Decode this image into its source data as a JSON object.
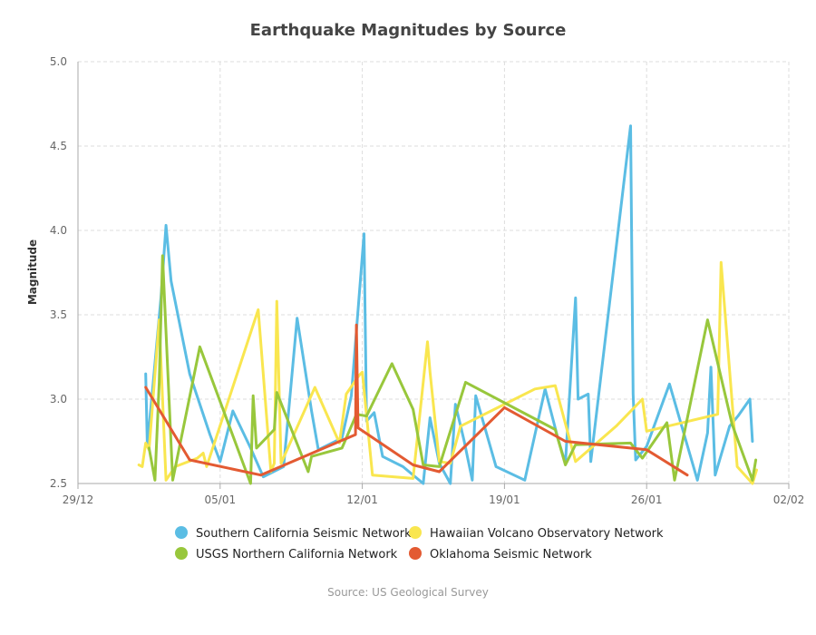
{
  "chart_data": {
    "type": "line",
    "title": "Earthquake Magnitudes by Source",
    "xlabel": "",
    "ylabel": "Magnitude",
    "source": "Source: US Geological Survey",
    "x_is_date": true,
    "xlim": [
      "2015-12-29",
      "2016-02-02"
    ],
    "x_ticks": [
      "2015-12-29",
      "2016-01-05",
      "2016-01-12",
      "2016-01-19",
      "2016-01-26",
      "2016-02-02"
    ],
    "x_tick_labels": [
      "29/12",
      "05/01",
      "12/01",
      "19/01",
      "26/01",
      "02/02"
    ],
    "ylim": [
      2.5,
      5.0
    ],
    "y_ticks": [
      2.5,
      3.0,
      3.5,
      4.0,
      4.5,
      5.0
    ],
    "y_tick_labels": [
      "2.5",
      "3.0",
      "3.5",
      "4.0",
      "4.5",
      "5.0"
    ],
    "grid": true,
    "legend_position": "bottom",
    "series": [
      {
        "name": "Southern California Seismic Network",
        "color": "#5bbde4",
        "points": [
          [
            "2016-01-01T08:00",
            3.15
          ],
          [
            "2016-01-01T10:00",
            2.72
          ],
          [
            "2016-01-02T02:00",
            3.6
          ],
          [
            "2016-01-02T08:00",
            4.03
          ],
          [
            "2016-01-02T14:00",
            3.7
          ],
          [
            "2016-01-03T12:00",
            3.15
          ],
          [
            "2016-01-04T12:00",
            2.79
          ],
          [
            "2016-01-05T00:00",
            2.63
          ],
          [
            "2016-01-05T15:00",
            2.93
          ],
          [
            "2016-01-06T12:00",
            2.71
          ],
          [
            "2016-01-07T03:00",
            2.54
          ],
          [
            "2016-01-08T03:00",
            2.6
          ],
          [
            "2016-01-08T19:00",
            3.48
          ],
          [
            "2016-01-09T12:00",
            2.93
          ],
          [
            "2016-01-09T20:00",
            2.7
          ],
          [
            "2016-01-11T00:00",
            2.77
          ],
          [
            "2016-01-11T11:00",
            3.02
          ],
          [
            "2016-01-12T02:00",
            3.98
          ],
          [
            "2016-01-12T05:00",
            2.87
          ],
          [
            "2016-01-12T14:00",
            2.92
          ],
          [
            "2016-01-13T00:00",
            2.66
          ],
          [
            "2016-01-14T00:00",
            2.6
          ],
          [
            "2016-01-15T00:00",
            2.5
          ],
          [
            "2016-01-15T08:00",
            2.89
          ],
          [
            "2016-01-15T19:00",
            2.62
          ],
          [
            "2016-01-16T08:00",
            2.5
          ],
          [
            "2016-01-16T14:00",
            2.97
          ],
          [
            "2016-01-17T00:00",
            2.76
          ],
          [
            "2016-01-17T10:00",
            2.52
          ],
          [
            "2016-01-17T14:00",
            3.02
          ],
          [
            "2016-01-18T14:00",
            2.6
          ],
          [
            "2016-01-20T00:00",
            2.52
          ],
          [
            "2016-01-21T00:00",
            3.06
          ],
          [
            "2016-01-21T15:00",
            2.77
          ],
          [
            "2016-01-22T00:00",
            2.62
          ],
          [
            "2016-01-22T12:00",
            3.6
          ],
          [
            "2016-01-22T15:00",
            3.0
          ],
          [
            "2016-01-23T03:00",
            3.03
          ],
          [
            "2016-01-23T06:00",
            2.63
          ],
          [
            "2016-01-25T05:00",
            4.62
          ],
          [
            "2016-01-25T08:00",
            3.03
          ],
          [
            "2016-01-25T11:00",
            2.64
          ],
          [
            "2016-01-26T00:00",
            2.72
          ],
          [
            "2016-01-27T03:00",
            3.09
          ],
          [
            "2016-01-28T12:00",
            2.52
          ],
          [
            "2016-01-29T00:00",
            2.8
          ],
          [
            "2016-01-29T04:00",
            3.19
          ],
          [
            "2016-01-29T09:00",
            2.55
          ],
          [
            "2016-01-30T02:00",
            2.84
          ],
          [
            "2016-01-30T12:00",
            2.9
          ],
          [
            "2016-01-31T02:00",
            3.0
          ],
          [
            "2016-01-31T05:00",
            2.75
          ]
        ]
      },
      {
        "name": "Hawaiian Volcano Observatory Network",
        "color": "#f9e64f",
        "points": [
          [
            "2016-01-01T00:00",
            2.61
          ],
          [
            "2016-01-01T04:00",
            2.6
          ],
          [
            "2016-01-01T08:00",
            2.74
          ],
          [
            "2016-01-01T12:00",
            2.7
          ],
          [
            "2016-01-02T00:00",
            3.47
          ],
          [
            "2016-01-02T08:00",
            2.52
          ],
          [
            "2016-01-02T19:00",
            2.6
          ],
          [
            "2016-01-03T21:00",
            2.65
          ],
          [
            "2016-01-04T04:00",
            2.68
          ],
          [
            "2016-01-04T08:00",
            2.6
          ],
          [
            "2016-01-06T21:00",
            3.53
          ],
          [
            "2016-01-07T12:00",
            2.57
          ],
          [
            "2016-01-07T16:00",
            2.62
          ],
          [
            "2016-01-07T19:00",
            3.58
          ],
          [
            "2016-01-08T00:00",
            2.62
          ],
          [
            "2016-01-09T16:00",
            3.07
          ],
          [
            "2016-01-10T21:00",
            2.74
          ],
          [
            "2016-01-11T05:00",
            3.03
          ],
          [
            "2016-01-11T20:00",
            3.14
          ],
          [
            "2016-01-12T00:00",
            3.16
          ],
          [
            "2016-01-12T12:00",
            2.55
          ],
          [
            "2016-01-14T12:00",
            2.53
          ],
          [
            "2016-01-15T05:00",
            3.34
          ],
          [
            "2016-01-15T08:00",
            3.16
          ],
          [
            "2016-01-15T19:00",
            2.63
          ],
          [
            "2016-01-16T08:00",
            2.62
          ],
          [
            "2016-01-16T20:00",
            2.84
          ],
          [
            "2016-01-19T00:00",
            2.97
          ],
          [
            "2016-01-20T12:00",
            3.06
          ],
          [
            "2016-01-21T12:00",
            3.08
          ],
          [
            "2016-01-22T12:00",
            2.63
          ],
          [
            "2016-01-24T12:00",
            2.84
          ],
          [
            "2016-01-25T19:00",
            3.0
          ],
          [
            "2016-01-26T00:00",
            2.81
          ],
          [
            "2016-01-29T12:00",
            2.91
          ],
          [
            "2016-01-29T16:00",
            3.81
          ],
          [
            "2016-01-30T11:00",
            2.6
          ],
          [
            "2016-01-31T05:00",
            2.5
          ],
          [
            "2016-01-31T10:00",
            2.58
          ]
        ]
      },
      {
        "name": "USGS Northern California Network",
        "color": "#98c73c",
        "points": [
          [
            "2016-01-01T12:00",
            2.71
          ],
          [
            "2016-01-01T19:00",
            2.52
          ],
          [
            "2016-01-02T00:00",
            3.1
          ],
          [
            "2016-01-02T04:00",
            3.85
          ],
          [
            "2016-01-02T16:00",
            2.52
          ],
          [
            "2016-01-04T00:00",
            3.31
          ],
          [
            "2016-01-06T12:00",
            2.5
          ],
          [
            "2016-01-06T15:00",
            3.02
          ],
          [
            "2016-01-06T19:00",
            2.71
          ],
          [
            "2016-01-07T16:00",
            2.82
          ],
          [
            "2016-01-07T19:00",
            3.04
          ],
          [
            "2016-01-09T08:00",
            2.57
          ],
          [
            "2016-01-09T12:00",
            2.66
          ],
          [
            "2016-01-11T00:00",
            2.71
          ],
          [
            "2016-01-11T17:00",
            2.91
          ],
          [
            "2016-01-12T05:00",
            2.9
          ],
          [
            "2016-01-13T11:00",
            3.21
          ],
          [
            "2016-01-14T12:00",
            2.94
          ],
          [
            "2016-01-15T00:00",
            2.61
          ],
          [
            "2016-01-15T19:00",
            2.6
          ],
          [
            "2016-01-17T02:00",
            3.1
          ],
          [
            "2016-01-21T12:00",
            2.82
          ],
          [
            "2016-01-22T00:00",
            2.61
          ],
          [
            "2016-01-22T12:00",
            2.73
          ],
          [
            "2016-01-25T05:00",
            2.74
          ],
          [
            "2016-01-25T19:00",
            2.65
          ],
          [
            "2016-01-27T00:00",
            2.86
          ],
          [
            "2016-01-27T09:00",
            2.52
          ],
          [
            "2016-01-29T00:00",
            3.47
          ],
          [
            "2016-01-30T05:00",
            2.85
          ],
          [
            "2016-01-31T05:00",
            2.52
          ],
          [
            "2016-01-31T09:00",
            2.64
          ]
        ]
      },
      {
        "name": "Oklahoma Seismic Network",
        "color": "#e35a32",
        "points": [
          [
            "2016-01-01T08:00",
            3.07
          ],
          [
            "2016-01-03T12:00",
            2.64
          ],
          [
            "2016-01-07T00:00",
            2.55
          ],
          [
            "2016-01-11T16:00",
            2.79
          ],
          [
            "2016-01-11T17:00",
            3.44
          ],
          [
            "2016-01-11T19:00",
            2.83
          ],
          [
            "2016-01-14T12:00",
            2.61
          ],
          [
            "2016-01-15T19:00",
            2.57
          ],
          [
            "2016-01-19T00:00",
            2.95
          ],
          [
            "2016-01-22T00:00",
            2.75
          ],
          [
            "2016-01-26T00:00",
            2.7
          ],
          [
            "2016-01-28T00:00",
            2.55
          ]
        ]
      }
    ]
  }
}
